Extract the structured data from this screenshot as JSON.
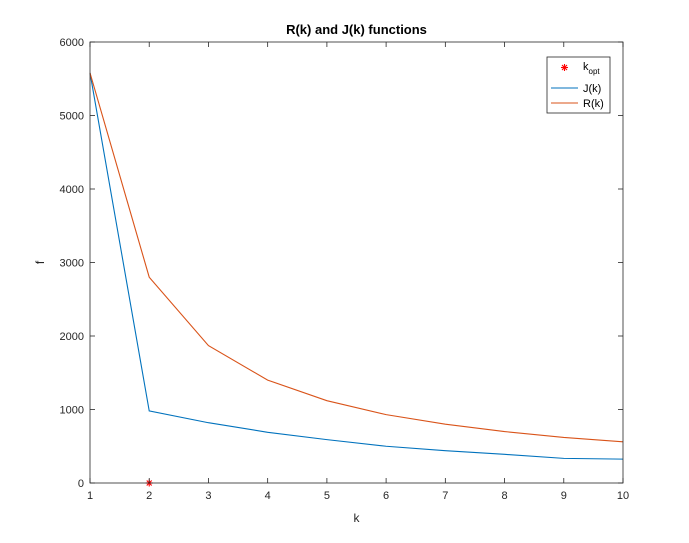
{
  "chart_data": {
    "type": "line",
    "title": "R(k) and J(k) functions",
    "xlabel": "k",
    "ylabel": "f",
    "xlim": [
      1,
      10
    ],
    "ylim": [
      0,
      6000
    ],
    "xticks": [
      1,
      2,
      3,
      4,
      5,
      6,
      7,
      8,
      9,
      10
    ],
    "yticks": [
      0,
      1000,
      2000,
      3000,
      4000,
      5000,
      6000
    ],
    "grid": false,
    "legend_position": "top-right",
    "x": [
      1,
      2,
      3,
      4,
      5,
      6,
      7,
      8,
      9,
      10
    ],
    "series": [
      {
        "name": "J(k)",
        "color": "#0072bd",
        "values": [
          5580,
          980,
          820,
          690,
          590,
          500,
          440,
          390,
          335,
          325
        ]
      },
      {
        "name": "R(k)",
        "color": "#d95319",
        "values": [
          5580,
          2800,
          1870,
          1400,
          1120,
          930,
          800,
          700,
          620,
          560
        ]
      }
    ],
    "markers": [
      {
        "name": "k",
        "name_sub": "opt",
        "x": 2,
        "y": 0,
        "color": "#ff0000",
        "symbol": "asterisk"
      }
    ]
  }
}
